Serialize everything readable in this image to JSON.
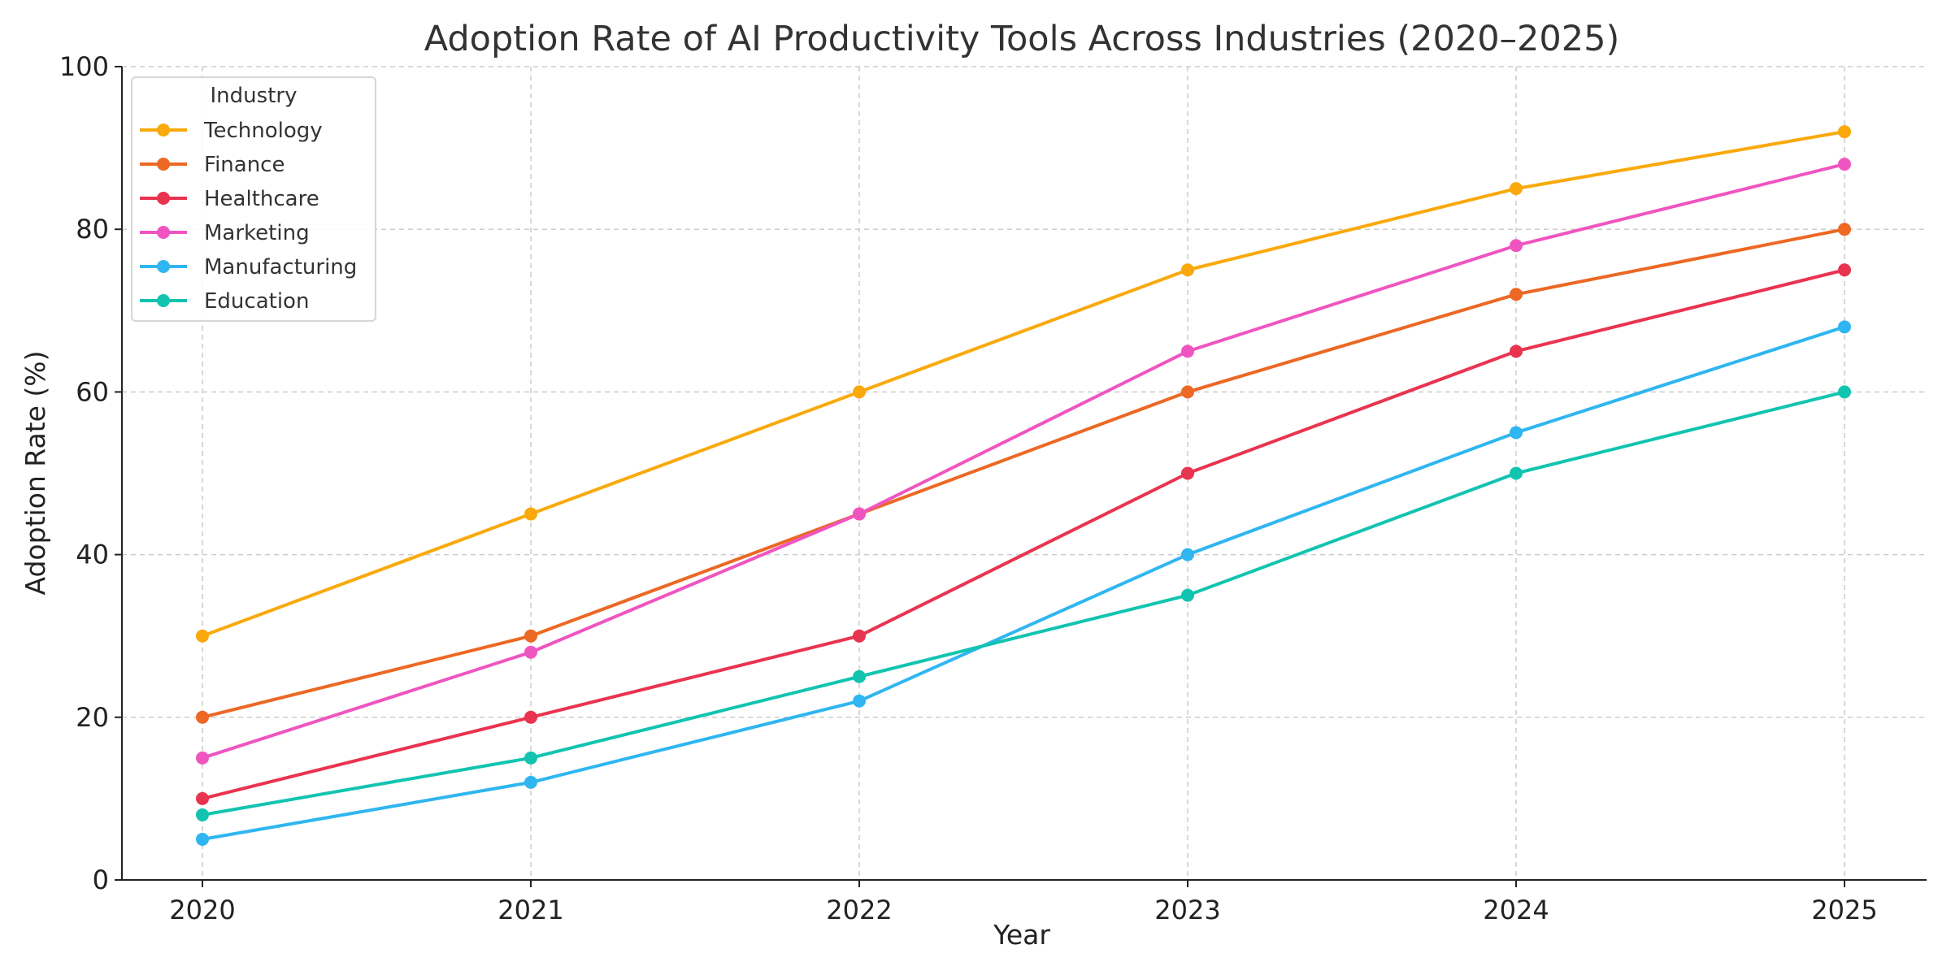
{
  "chart_data": {
    "type": "line",
    "title": "Adoption Rate of AI Productivity Tools Across Industries (2020–2025)",
    "xlabel": "Year",
    "ylabel": "Adoption Rate (%)",
    "x": [
      2020,
      2021,
      2022,
      2023,
      2024,
      2025
    ],
    "x_tick_labels": [
      "2020",
      "2021",
      "2022",
      "2023",
      "2024",
      "2025"
    ],
    "ylim": [
      0,
      100
    ],
    "y_ticks": [
      0,
      20,
      40,
      60,
      80,
      100
    ],
    "y_tick_labels": [
      "0",
      "20",
      "40",
      "60",
      "80",
      "100"
    ],
    "grid": true,
    "legend": {
      "title": "Industry",
      "placement": "upper-left"
    },
    "series": [
      {
        "name": "Technology",
        "color": "#F9A90B",
        "values": [
          30,
          45,
          60,
          75,
          85,
          92
        ]
      },
      {
        "name": "Finance",
        "color": "#EC6824",
        "values": [
          20,
          30,
          45,
          60,
          72,
          80
        ]
      },
      {
        "name": "Healthcare",
        "color": "#E9344F",
        "values": [
          10,
          20,
          30,
          50,
          65,
          75
        ]
      },
      {
        "name": "Marketing",
        "color": "#EF55C0",
        "values": [
          15,
          28,
          45,
          65,
          78,
          88
        ]
      },
      {
        "name": "Manufacturing",
        "color": "#2FB6F0",
        "values": [
          5,
          12,
          22,
          40,
          55,
          68
        ]
      },
      {
        "name": "Education",
        "color": "#12C4B0",
        "values": [
          8,
          15,
          25,
          35,
          50,
          60
        ]
      }
    ]
  }
}
